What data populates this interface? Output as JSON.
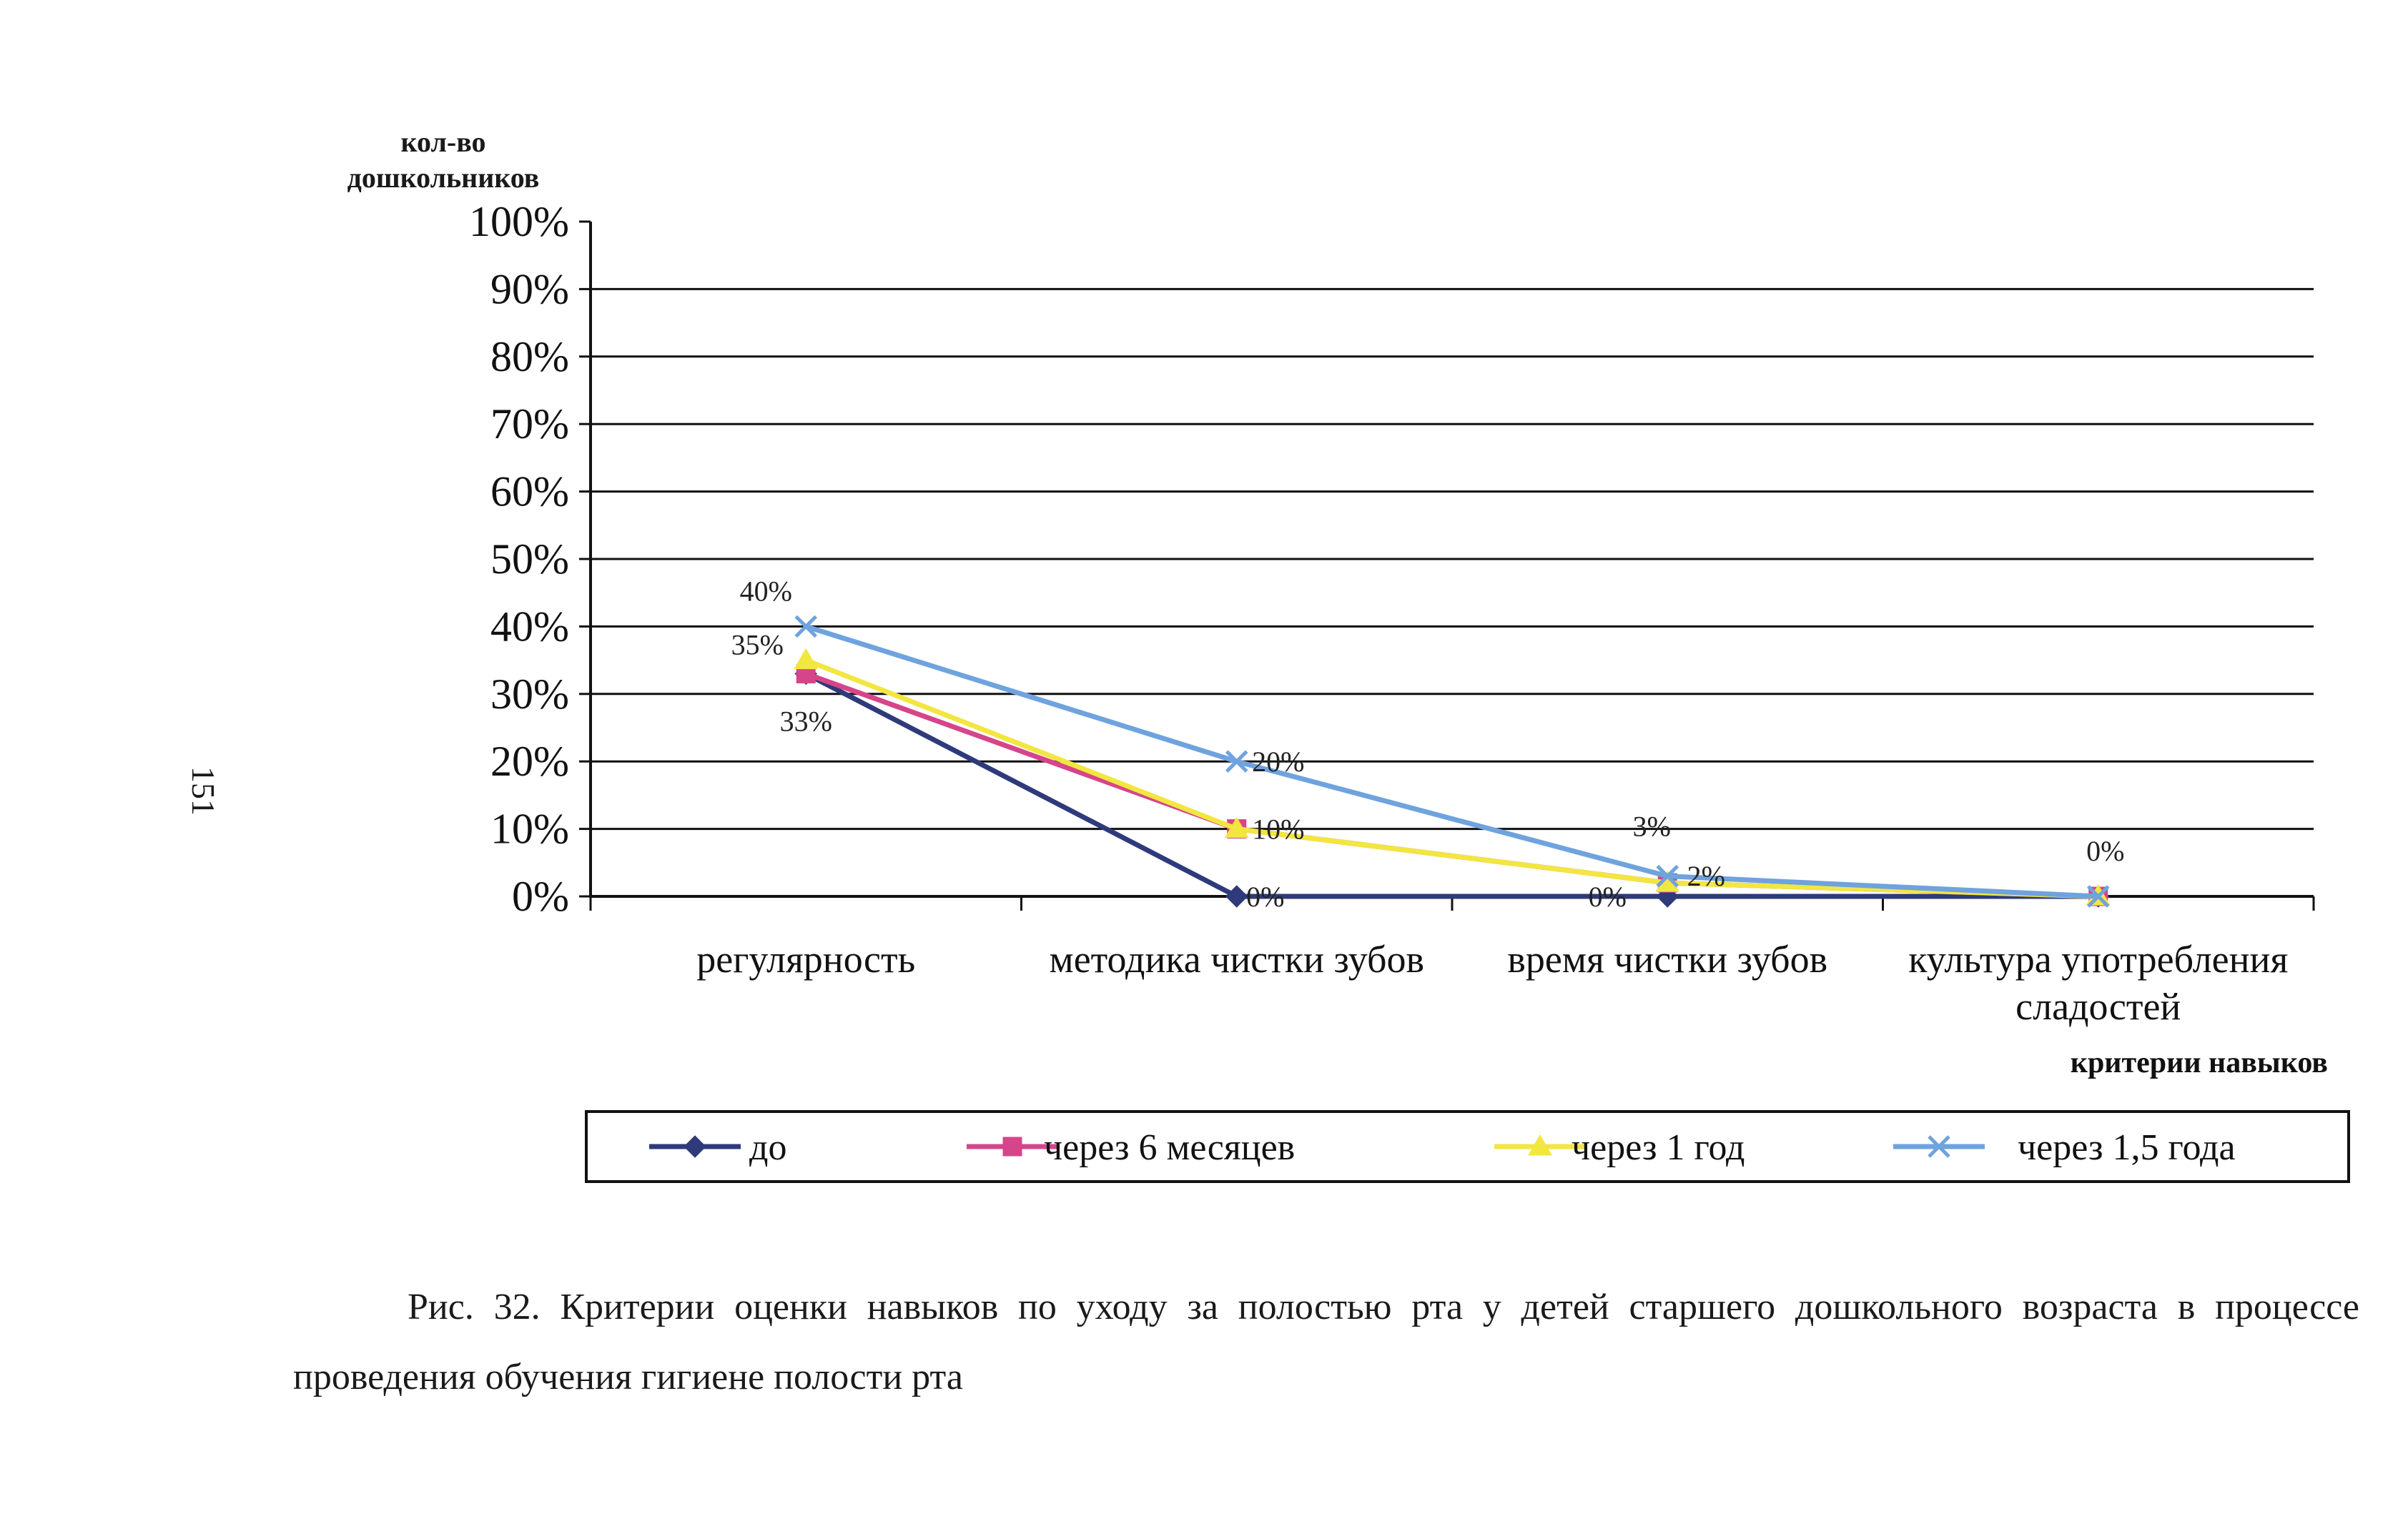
{
  "page_number": "151",
  "caption": "Рис. 32. Критерии оценки навыков по уходу за полостью рта у детей старшего дошкольного возраста в процессе проведения обучения гигиене полости рта",
  "chart_data": {
    "type": "line",
    "ylabel_line1": "кол-во",
    "ylabel_line2": "дошкольников",
    "xlabel": "критерии навыков",
    "categories": [
      "регулярность",
      "методика чистки зубов",
      "время чистки зубов",
      "культура употребления сладостей"
    ],
    "category_lines": [
      [
        "регулярность"
      ],
      [
        "методика чистки зубов"
      ],
      [
        "время чистки зубов"
      ],
      [
        "культура употребления",
        "сладостей"
      ]
    ],
    "y_ticks": [
      "0%",
      "10%",
      "20%",
      "30%",
      "40%",
      "50%",
      "60%",
      "70%",
      "80%",
      "90%",
      "100%"
    ],
    "ylim": [
      0,
      100
    ],
    "grid": true,
    "legend_position": "bottom",
    "series": [
      {
        "name": "до",
        "values": [
          33,
          0,
          0,
          0
        ],
        "color": "#2e3a7a",
        "marker": "diamond",
        "labels": [
          "33%",
          "0%",
          "0%",
          ""
        ]
      },
      {
        "name": "через 6 месяцев",
        "values": [
          33,
          10,
          2,
          0
        ],
        "color": "#d6458a",
        "marker": "square",
        "labels": [
          "",
          "",
          "",
          ""
        ]
      },
      {
        "name": "через 1 год",
        "values": [
          35,
          10,
          2,
          0
        ],
        "color": "#f2e640",
        "marker": "triangle",
        "labels": [
          "35%",
          "10%",
          "2%",
          ""
        ]
      },
      {
        "name": "через 1,5 года",
        "values": [
          40,
          20,
          3,
          0
        ],
        "color": "#6fa3de",
        "marker": "x",
        "labels": [
          "40%",
          "20%",
          "3%",
          "0%"
        ]
      }
    ]
  }
}
